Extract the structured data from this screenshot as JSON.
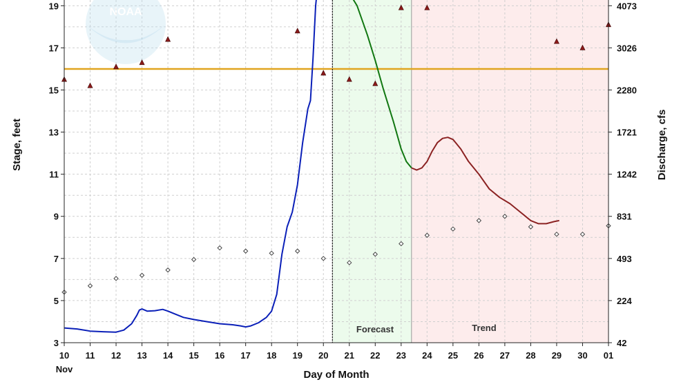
{
  "chart_data": {
    "type": "line",
    "xlabel": "Day of Month",
    "x_month_label": "Nov",
    "ylabel_left": "Stage, feet",
    "ylabel_right": "Discharge, cfs",
    "x_ticks": [
      "10",
      "11",
      "12",
      "13",
      "14",
      "15",
      "16",
      "17",
      "18",
      "19",
      "20",
      "21",
      "22",
      "23",
      "24",
      "25",
      "26",
      "27",
      "28",
      "29",
      "30",
      "01"
    ],
    "y_left_ticks": [
      "3",
      "5",
      "7",
      "9",
      "11",
      "13",
      "15",
      "17",
      "19"
    ],
    "y_left_range": [
      3,
      19.6
    ],
    "y_right_ticks": [
      "42",
      "224",
      "493",
      "831",
      "1242",
      "1721",
      "2280",
      "3026",
      "4073"
    ],
    "grid": true,
    "logo_text": "NOAA",
    "flood_stage": 16,
    "now_marker": 20.35,
    "zones": [
      {
        "label": "Forecast",
        "start": 20.35,
        "end": 23.4,
        "color": "#ecfbec"
      },
      {
        "label": "Trend",
        "start": 23.4,
        "end": 31,
        "color": "#fdecec"
      }
    ],
    "series": [
      {
        "role": "observed",
        "color": "#0a1fb8",
        "x": [
          10,
          10.5,
          11,
          11.5,
          12,
          12.3,
          12.6,
          12.8,
          12.9,
          13,
          13.2,
          13.5,
          13.8,
          14,
          14.3,
          14.6,
          15,
          15.5,
          16,
          16.5,
          16.8,
          17,
          17.2,
          17.5,
          17.8,
          18,
          18.2,
          18.4,
          18.6,
          18.8,
          19,
          19.2,
          19.4,
          19.5,
          19.6,
          19.7,
          19.75
        ],
        "y": [
          3.7,
          3.65,
          3.55,
          3.52,
          3.5,
          3.6,
          3.9,
          4.3,
          4.55,
          4.6,
          4.5,
          4.52,
          4.58,
          4.5,
          4.35,
          4.2,
          4.1,
          4.0,
          3.9,
          3.85,
          3.8,
          3.75,
          3.8,
          3.95,
          4.2,
          4.5,
          5.3,
          7.2,
          8.5,
          9.2,
          10.5,
          12.5,
          14.1,
          14.5,
          16.5,
          19,
          19.6
        ]
      },
      {
        "role": "forecast",
        "color": "#117711",
        "x": [
          21,
          21.3,
          21.7,
          22,
          22.3,
          22.7,
          23,
          23.2,
          23.4
        ],
        "y": [
          19.6,
          19.0,
          17.6,
          16.4,
          15.1,
          13.5,
          12.2,
          11.6,
          11.3
        ]
      },
      {
        "role": "trend",
        "color": "#8b2222",
        "x": [
          23.4,
          23.6,
          23.8,
          24,
          24.2,
          24.4,
          24.6,
          24.8,
          25,
          25.3,
          25.6,
          26,
          26.4,
          26.8,
          27.2,
          27.6,
          28,
          28.3,
          28.6,
          28.9,
          29.1
        ],
        "y": [
          11.3,
          11.2,
          11.3,
          11.6,
          12.1,
          12.5,
          12.7,
          12.75,
          12.65,
          12.2,
          11.6,
          11.0,
          10.3,
          9.9,
          9.6,
          9.2,
          8.8,
          8.65,
          8.65,
          8.75,
          8.8
        ]
      }
    ],
    "marker_series": [
      {
        "role": "triangle",
        "color": "#8b1a1a",
        "x": [
          10,
          11,
          12,
          13,
          14,
          19,
          20,
          21,
          22,
          23,
          24,
          29,
          30,
          31
        ],
        "y": [
          15.5,
          15.2,
          16.1,
          16.3,
          17.4,
          17.8,
          15.8,
          15.5,
          15.3,
          18.9,
          18.9,
          17.3,
          17.0,
          18.1
        ]
      },
      {
        "role": "diamond",
        "color": "#444444",
        "x": [
          10,
          11,
          12,
          13,
          14,
          15,
          16,
          17,
          18,
          19,
          20,
          21,
          22,
          23,
          24,
          25,
          26,
          27,
          28,
          29,
          30,
          31
        ],
        "y": [
          5.4,
          5.7,
          6.05,
          6.2,
          6.45,
          6.95,
          7.5,
          7.35,
          7.25,
          7.35,
          7.0,
          6.8,
          7.2,
          7.7,
          8.1,
          8.4,
          8.8,
          9.0,
          8.5,
          8.15,
          8.15,
          8.55
        ]
      }
    ]
  }
}
